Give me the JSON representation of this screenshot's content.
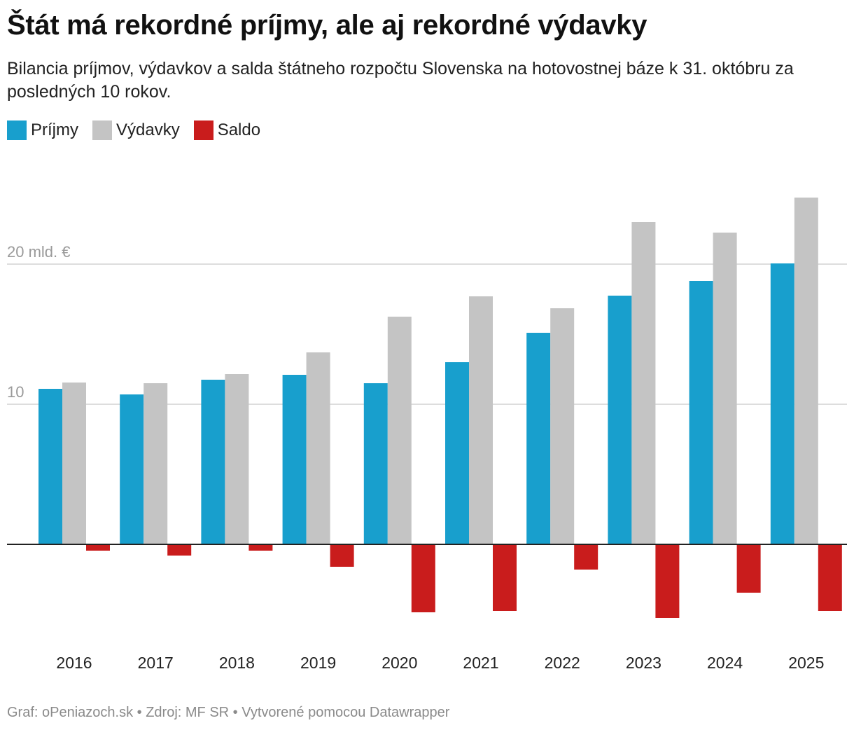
{
  "header": {
    "title": "Štát má rekordné príjmy, ale aj rekordné výdavky",
    "subtitle": "Bilancia príjmov, výdavkov a salda štátneho rozpočtu Slovenska na hotovostnej báze k 31. októbru za posledných 10 rokov."
  },
  "footer": {
    "text": "Graf: oPeniazoch.sk • Zdroj: MF SR • Vytvorené pomocou Datawrapper"
  },
  "colors": {
    "prijmy": "#189fcd",
    "vydavky": "#c4c4c4",
    "saldo": "#c91c1c",
    "grid": "#dddddd",
    "axis": "#222222",
    "tick_text": "#9a9a9a"
  },
  "chart_data": {
    "type": "bar",
    "title": "Štát má rekordné príjmy, ale aj rekordné výdavky",
    "categories": [
      "2016",
      "2017",
      "2018",
      "2019",
      "2020",
      "2021",
      "2022",
      "2023",
      "2024",
      "2025"
    ],
    "series": [
      {
        "name": "Príjmy",
        "color_key": "prijmy",
        "values": [
          11.1,
          10.7,
          11.75,
          12.1,
          11.5,
          13.0,
          15.1,
          17.75,
          18.8,
          20.05
        ]
      },
      {
        "name": "Výdavky",
        "color_key": "vydavky",
        "values": [
          11.55,
          11.5,
          12.15,
          13.7,
          16.25,
          17.7,
          16.85,
          23.0,
          22.25,
          24.75
        ]
      },
      {
        "name": "Saldo",
        "color_key": "saldo",
        "values": [
          -0.45,
          -0.8,
          -0.45,
          -1.6,
          -4.85,
          -4.75,
          -1.8,
          -5.25,
          -3.45,
          -4.75
        ]
      }
    ],
    "y_ticks": [
      {
        "value": 20,
        "label": "20 mld. €"
      },
      {
        "value": 10,
        "label": "10"
      }
    ],
    "ylim": [
      -6,
      26
    ],
    "grid": true,
    "legend_position": "top-left",
    "xlabel": "",
    "ylabel": ""
  }
}
